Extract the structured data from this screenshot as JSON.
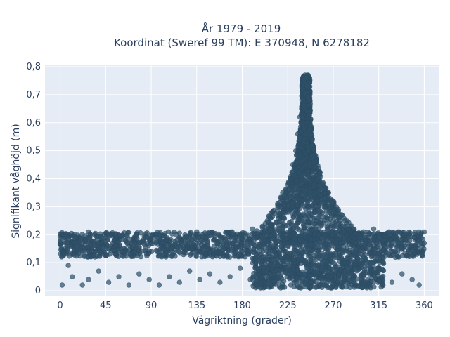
{
  "chart_data": {
    "type": "scatter",
    "title_line1": "År 1979 - 2019",
    "title_line2": "Koordinat (Sweref 99 TM): E 370948, N 6278182",
    "xlabel": "Vågriktning (grader)",
    "ylabel": "Signifikant våghöjd (m)",
    "xlim": [
      -15,
      375
    ],
    "ylim": [
      -0.02,
      0.805
    ],
    "xticks": [
      0,
      45,
      90,
      135,
      180,
      225,
      270,
      315,
      360
    ],
    "xtick_labels": [
      "0",
      "45",
      "90",
      "135",
      "180",
      "225",
      "270",
      "315",
      "360"
    ],
    "yticks": [
      0,
      0.1,
      0.2,
      0.3,
      0.4,
      0.5,
      0.6,
      0.7,
      0.8
    ],
    "ytick_labels": [
      "0",
      "0,1",
      "0,2",
      "0,3",
      "0,4",
      "0,5",
      "0,6",
      "0,7",
      "0,8"
    ],
    "grid": true,
    "legend": "none",
    "series": [
      {
        "name": "",
        "marker_color": "#2f5068",
        "points": [
          [
            0,
            0.17
          ],
          [
            5,
            0.2
          ],
          [
            10,
            0.16
          ],
          [
            15,
            0.19
          ],
          [
            20,
            0.15
          ],
          [
            25,
            0.18
          ],
          [
            30,
            0.2
          ],
          [
            35,
            0.14
          ],
          [
            40,
            0.17
          ],
          [
            45,
            0.19
          ],
          [
            50,
            0.16
          ],
          [
            55,
            0.2
          ],
          [
            60,
            0.15
          ],
          [
            65,
            0.18
          ],
          [
            70,
            0.17
          ],
          [
            75,
            0.2
          ],
          [
            80,
            0.14
          ],
          [
            85,
            0.19
          ],
          [
            90,
            0.17
          ],
          [
            95,
            0.2
          ],
          [
            100,
            0.16
          ],
          [
            105,
            0.18
          ],
          [
            110,
            0.15
          ],
          [
            115,
            0.2
          ],
          [
            120,
            0.17
          ],
          [
            125,
            0.19
          ],
          [
            130,
            0.16
          ],
          [
            135,
            0.21
          ],
          [
            140,
            0.18
          ],
          [
            145,
            0.15
          ],
          [
            150,
            0.2
          ],
          [
            155,
            0.17
          ],
          [
            160,
            0.19
          ],
          [
            165,
            0.16
          ],
          [
            170,
            0.21
          ],
          [
            175,
            0.18
          ],
          [
            180,
            0.2
          ],
          [
            185,
            0.16
          ],
          [
            190,
            0.22
          ],
          [
            195,
            0.19
          ],
          [
            200,
            0.23
          ],
          [
            205,
            0.25
          ],
          [
            210,
            0.28
          ],
          [
            215,
            0.31
          ],
          [
            220,
            0.35
          ],
          [
            225,
            0.38
          ],
          [
            230,
            0.45
          ],
          [
            233,
            0.5
          ],
          [
            235,
            0.56
          ],
          [
            237,
            0.62
          ],
          [
            239,
            0.68
          ],
          [
            240,
            0.72
          ],
          [
            241,
            0.75
          ],
          [
            242,
            0.77
          ],
          [
            243,
            0.76
          ],
          [
            244,
            0.73
          ],
          [
            245,
            0.69
          ],
          [
            246,
            0.64
          ],
          [
            247,
            0.58
          ],
          [
            249,
            0.52
          ],
          [
            251,
            0.46
          ],
          [
            254,
            0.4
          ],
          [
            258,
            0.34
          ],
          [
            262,
            0.3
          ],
          [
            266,
            0.28
          ],
          [
            270,
            0.25
          ],
          [
            275,
            0.24
          ],
          [
            280,
            0.23
          ],
          [
            285,
            0.22
          ],
          [
            290,
            0.22
          ],
          [
            295,
            0.2
          ],
          [
            300,
            0.21
          ],
          [
            305,
            0.19
          ],
          [
            310,
            0.22
          ],
          [
            315,
            0.2
          ],
          [
            320,
            0.18
          ],
          [
            325,
            0.21
          ],
          [
            330,
            0.19
          ],
          [
            335,
            0.17
          ],
          [
            340,
            0.2
          ],
          [
            345,
            0.16
          ],
          [
            350,
            0.19
          ],
          [
            355,
            0.18
          ],
          [
            360,
            0.17
          ],
          [
            2,
            0.02
          ],
          [
            8,
            0.09
          ],
          [
            12,
            0.05
          ],
          [
            22,
            0.02
          ],
          [
            28,
            0.04
          ],
          [
            38,
            0.07
          ],
          [
            48,
            0.03
          ],
          [
            58,
            0.05
          ],
          [
            68,
            0.02
          ],
          [
            78,
            0.06
          ],
          [
            88,
            0.04
          ],
          [
            98,
            0.02
          ],
          [
            108,
            0.05
          ],
          [
            118,
            0.03
          ],
          [
            128,
            0.07
          ],
          [
            138,
            0.04
          ],
          [
            148,
            0.06
          ],
          [
            158,
            0.03
          ],
          [
            168,
            0.05
          ],
          [
            178,
            0.08
          ],
          [
            188,
            0.04
          ],
          [
            198,
            0.01
          ],
          [
            208,
            0.02
          ],
          [
            218,
            0.01
          ],
          [
            228,
            0.02
          ],
          [
            238,
            0.01
          ],
          [
            248,
            0.03
          ],
          [
            258,
            0.02
          ],
          [
            268,
            0.05
          ],
          [
            278,
            0.03
          ],
          [
            288,
            0.06
          ],
          [
            298,
            0.04
          ],
          [
            308,
            0.07
          ],
          [
            318,
            0.05
          ],
          [
            328,
            0.03
          ],
          [
            338,
            0.06
          ],
          [
            348,
            0.04
          ],
          [
            355,
            0.02
          ]
        ],
        "dense_band": {
          "x_min": 0,
          "x_max": 360,
          "y_min": 0.12,
          "y_max": 0.21
        },
        "peak_cloud": {
          "center_x": 243,
          "peak_y": 0.77,
          "base_y": 0.18
        },
        "lower_cloud": {
          "x_min": 190,
          "x_max": 320,
          "y_min": 0.01,
          "y_max": 0.12
        }
      }
    ]
  }
}
